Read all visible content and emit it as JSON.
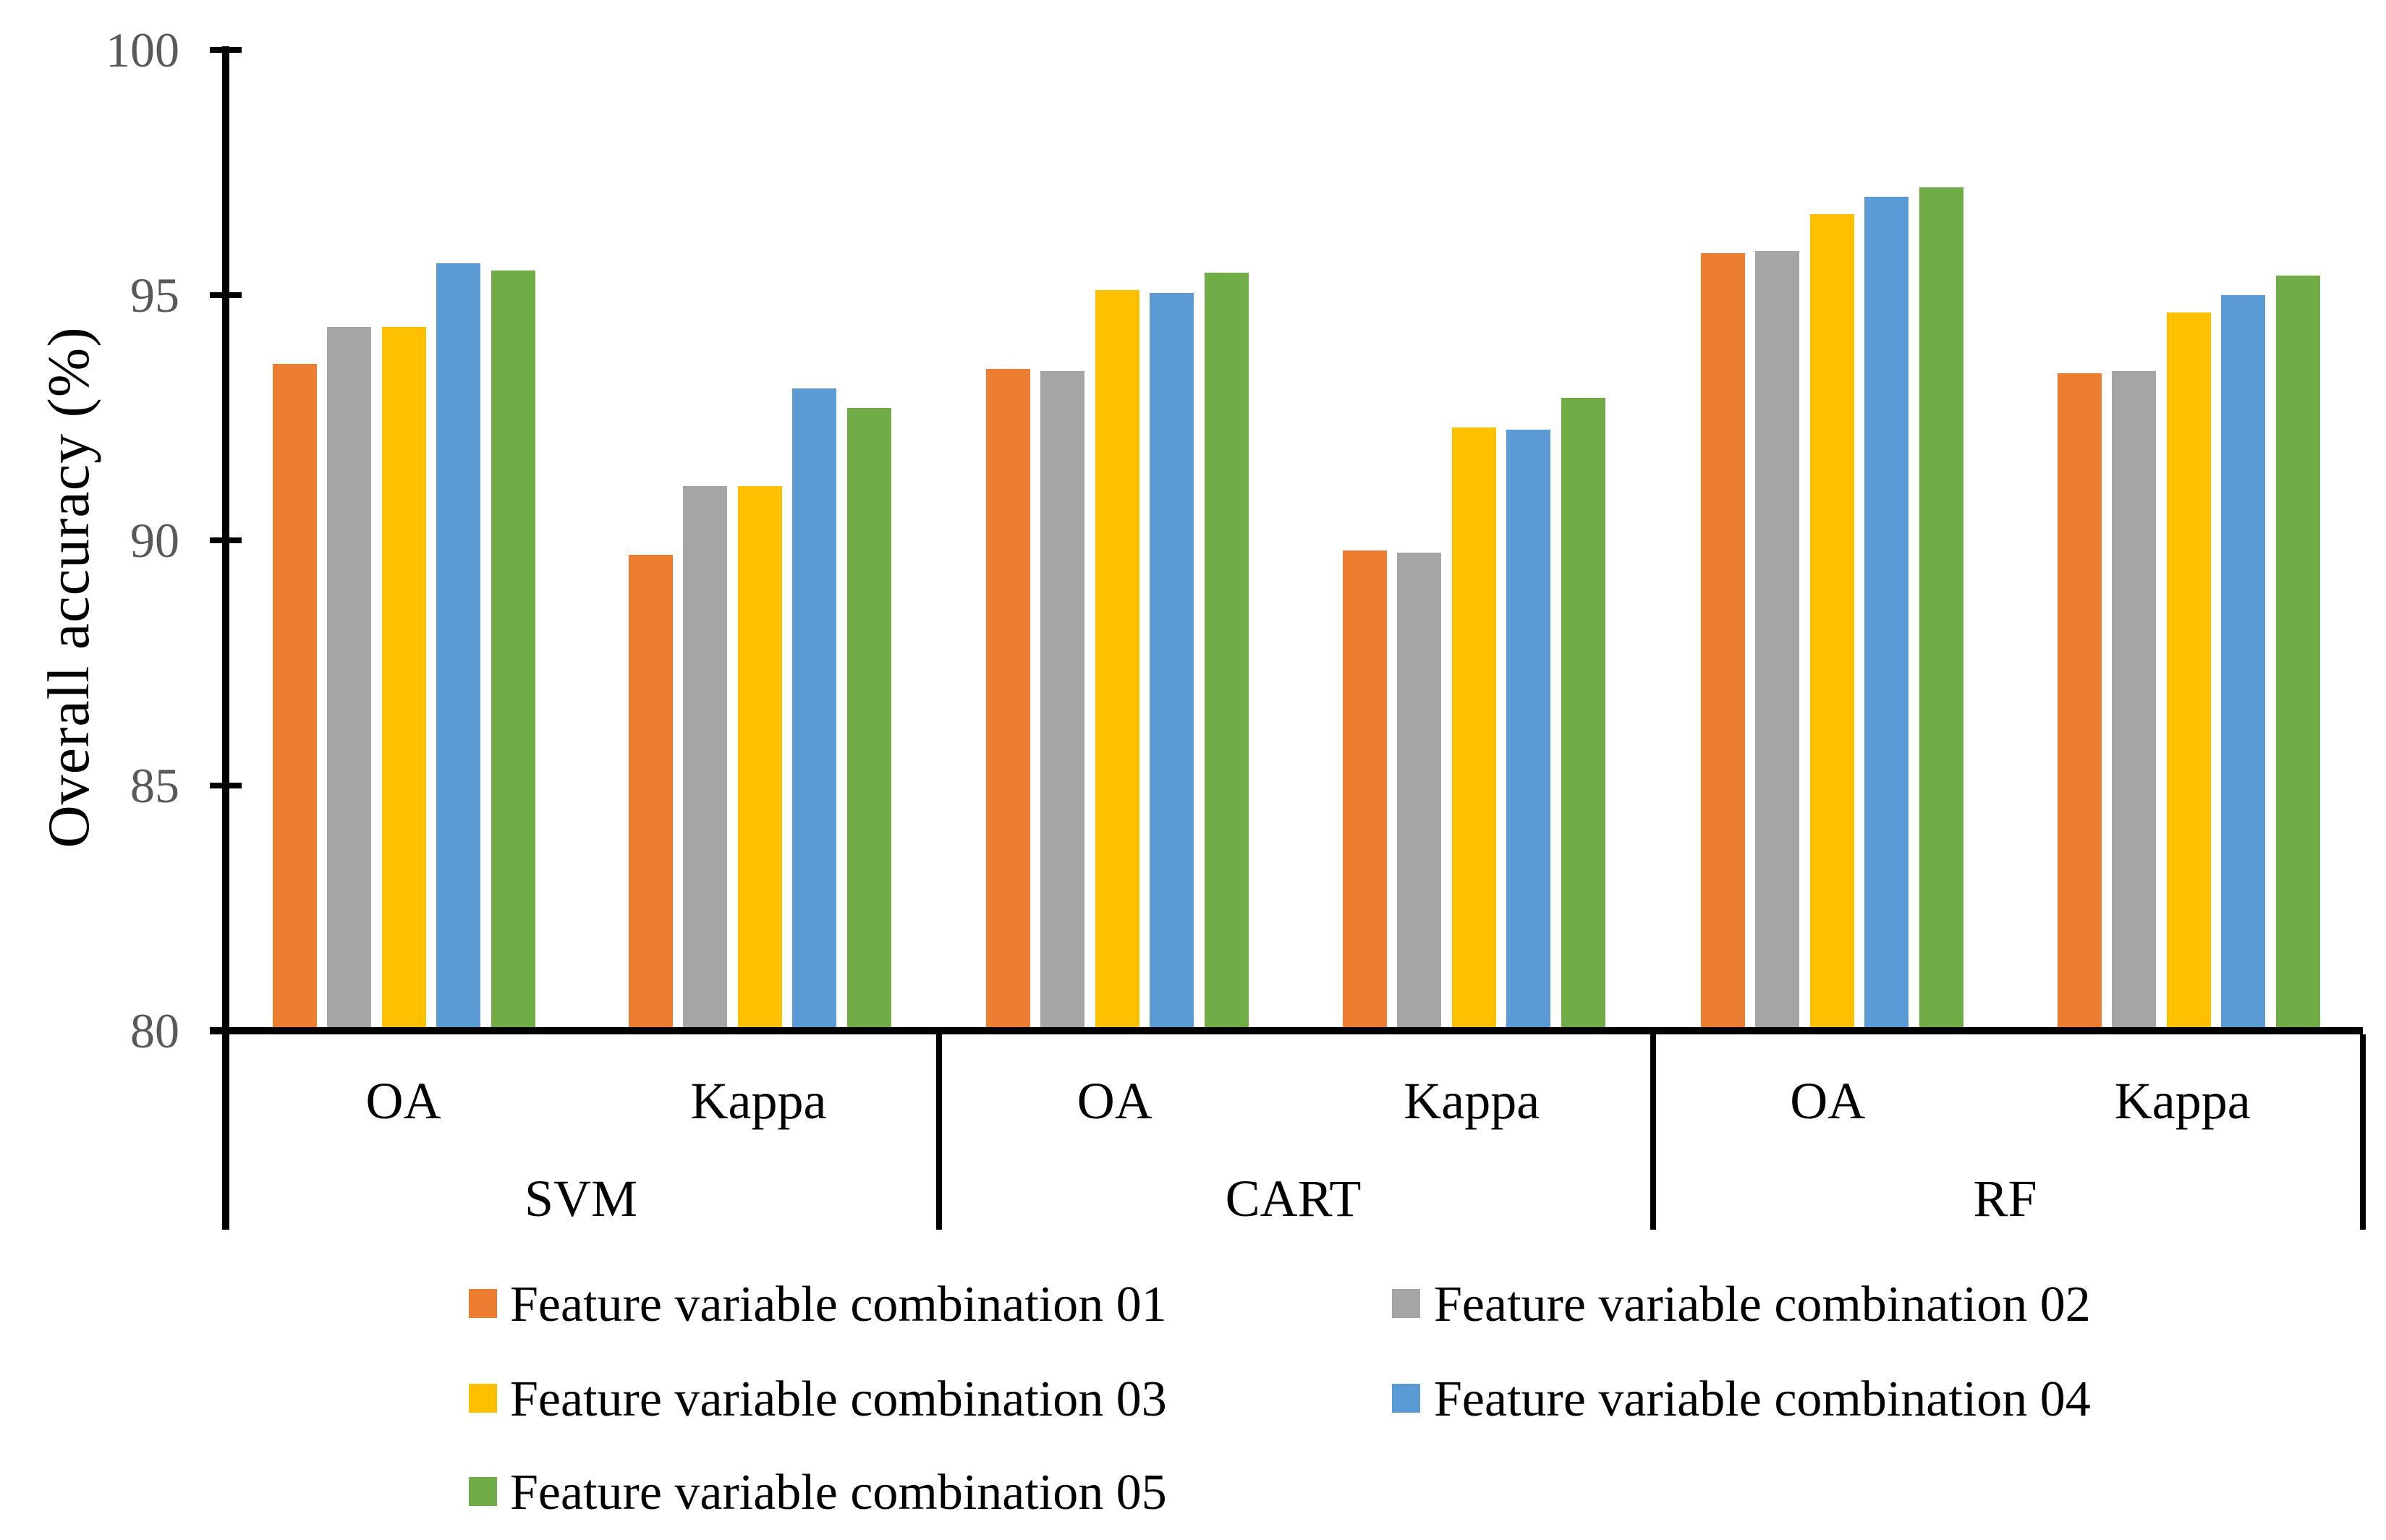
{
  "chart_data": {
    "type": "bar",
    "title": "",
    "ylabel": "Overall accuracy  (%)",
    "ylim": [
      80,
      100
    ],
    "yticks": [
      100,
      95,
      90,
      85,
      80
    ],
    "grid": false,
    "legend_position": "bottom",
    "axis_tick_label_color": "#595959",
    "methods": [
      "SVM",
      "CART",
      "RF"
    ],
    "metrics": [
      "OA",
      "Kappa"
    ],
    "group_labels": [
      "SVM OA",
      "SVM Kappa",
      "CART OA",
      "CART Kappa",
      "RF OA",
      "RF Kappa"
    ],
    "series": [
      {
        "name": "Feature variable combination 01",
        "color": "#ED7D31",
        "values": [
          93.6,
          89.7,
          93.5,
          89.8,
          95.85,
          93.4
        ]
      },
      {
        "name": "Feature variable combination 02",
        "color": "#A5A5A5",
        "values": [
          94.35,
          91.1,
          93.45,
          89.75,
          95.9,
          93.45
        ]
      },
      {
        "name": "Feature variable combination 03",
        "color": "#FFC000",
        "values": [
          94.35,
          91.1,
          95.1,
          92.3,
          96.65,
          94.65
        ]
      },
      {
        "name": "Feature variable combination 04",
        "color": "#5B9BD5",
        "values": [
          95.65,
          93.1,
          95.05,
          92.25,
          97.0,
          95.0
        ]
      },
      {
        "name": "Feature variable combination 05",
        "color": "#70AD47",
        "values": [
          95.5,
          92.7,
          95.45,
          92.9,
          97.2,
          95.4
        ]
      }
    ]
  }
}
